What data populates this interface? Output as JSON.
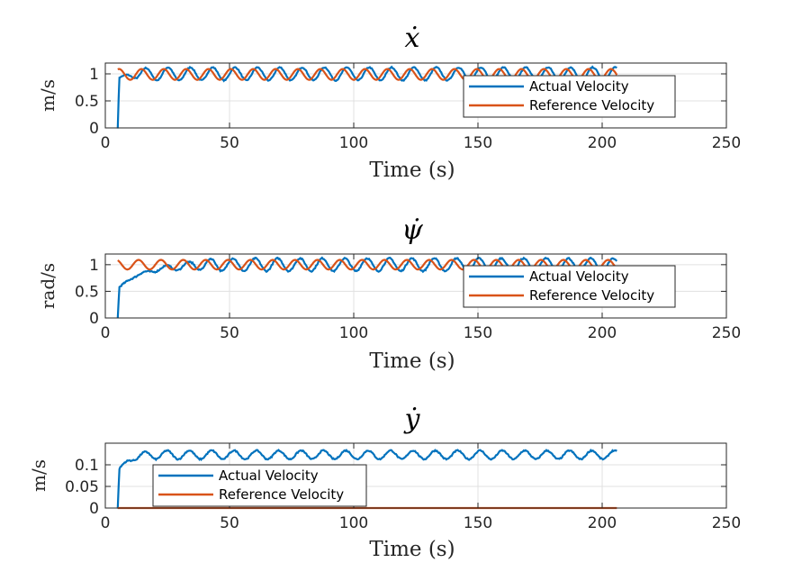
{
  "colors": {
    "actual": "#0072BD",
    "reference": "#D95319",
    "grid": "#e0e0e0",
    "axis": "#262626"
  },
  "chart_data": [
    {
      "type": "line",
      "title": "ẋ",
      "xlabel": "Time (s)",
      "ylabel": "m/s",
      "xlim": [
        0,
        250
      ],
      "ylim": [
        0,
        1.2
      ],
      "xticks": [
        0,
        50,
        100,
        150,
        200,
        250
      ],
      "yticks": [
        0,
        0.5,
        1
      ],
      "ytick_labels": [
        "0",
        "0.5",
        "1"
      ],
      "grid": true,
      "legend_position": "right",
      "series": [
        {
          "name": "Actual Velocity",
          "color": "#0072BD",
          "start": 5,
          "end": 206,
          "base": 1.0,
          "amp": 0.12,
          "period": 9,
          "phase": 0,
          "rise_to": 0.92,
          "noise": 0.02
        },
        {
          "name": "Reference Velocity",
          "color": "#D95319",
          "start": 5,
          "end": 206,
          "base": 0.99,
          "amp": 0.1,
          "period": 9,
          "phase": 1.2
        }
      ]
    },
    {
      "type": "line",
      "title": "ψ̇",
      "xlabel": "Time (s)",
      "ylabel": "rad/s",
      "xlim": [
        0,
        250
      ],
      "ylim": [
        0,
        1.2
      ],
      "xticks": [
        0,
        50,
        100,
        150,
        200,
        250
      ],
      "yticks": [
        0,
        0.5,
        1
      ],
      "ytick_labels": [
        "0",
        "0.5",
        "1"
      ],
      "grid": true,
      "legend_position": "right",
      "series": [
        {
          "name": "Actual Velocity",
          "color": "#0072BD",
          "start": 5,
          "end": 206,
          "base": 1.0,
          "amp": 0.12,
          "period": 9,
          "phase": 0.6,
          "rise_to": 0.55,
          "slow_rise": true,
          "noise": 0.025
        },
        {
          "name": "Reference Velocity",
          "color": "#D95319",
          "start": 5,
          "end": 206,
          "base": 1.0,
          "amp": 0.09,
          "period": 9,
          "phase": 2.0
        }
      ]
    },
    {
      "type": "line",
      "title": "ẏ",
      "xlabel": "Time (s)",
      "ylabel": "m/s",
      "xlim": [
        0,
        250
      ],
      "ylim": [
        0,
        0.15
      ],
      "xticks": [
        0,
        50,
        100,
        150,
        200,
        250
      ],
      "yticks": [
        0,
        0.05,
        0.1
      ],
      "ytick_labels": [
        "0",
        "0.05",
        "0.1"
      ],
      "grid": true,
      "legend_position": "left",
      "series": [
        {
          "name": "Actual Velocity",
          "color": "#0072BD",
          "start": 5,
          "end": 206,
          "base": 0.123,
          "amp": 0.01,
          "period": 9,
          "phase": 0.3,
          "rise_to": 0.085,
          "noise": 0.003
        },
        {
          "name": "Reference Velocity",
          "color": "#D95319",
          "start": 5,
          "end": 206,
          "base": 0,
          "amp": 0,
          "period": 9,
          "phase": 0
        }
      ]
    }
  ]
}
